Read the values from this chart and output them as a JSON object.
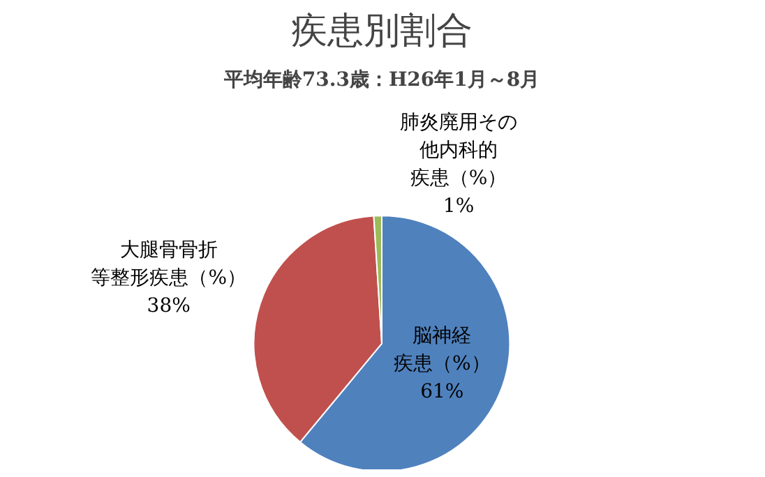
{
  "chart_data": {
    "type": "pie",
    "title": "疾患別割合",
    "subtitle": "平均年齢73.3歳：H26年1月～8月",
    "categories": [
      "脳神経疾患（%）",
      "大腿骨骨折等整形疾患（%）",
      "肺炎廃用その他内科的疾患（%）"
    ],
    "values": [
      61,
      38,
      1
    ],
    "colors": [
      "#4f81bd",
      "#c0504d",
      "#9bbb59"
    ],
    "value_labels": [
      "61%",
      "38%",
      "1%"
    ]
  }
}
